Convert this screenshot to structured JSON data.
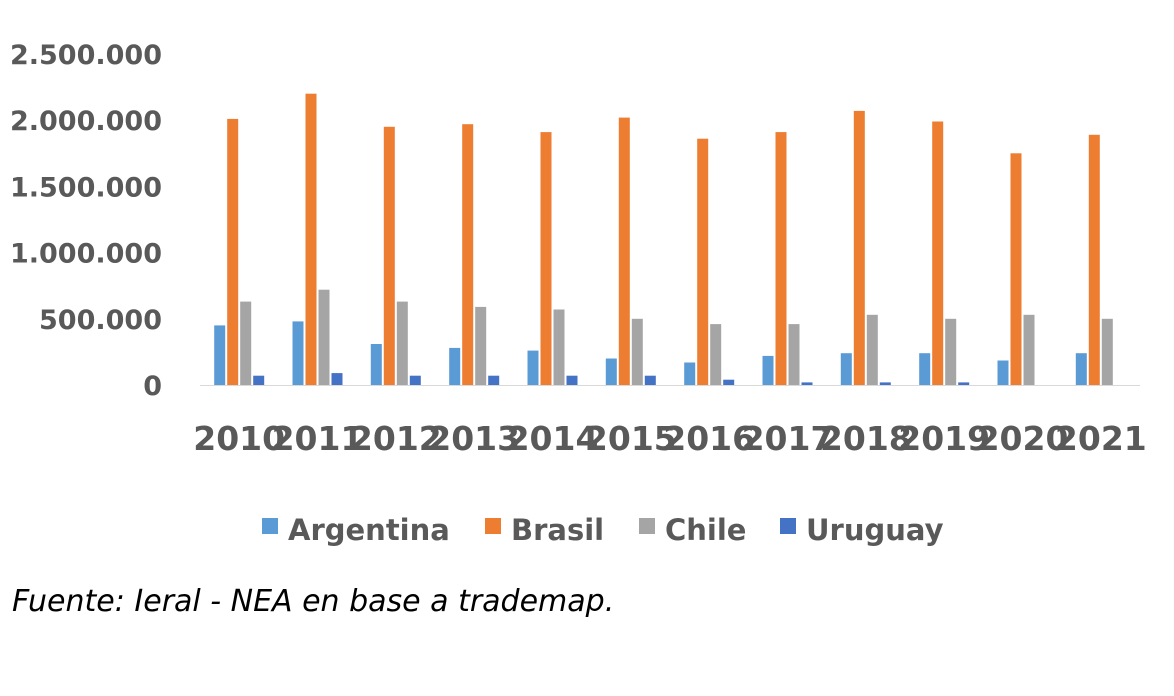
{
  "chart_data": {
    "type": "bar",
    "categories": [
      "2010",
      "2011",
      "2012",
      "2013",
      "2014",
      "2015",
      "2016",
      "2017",
      "2018",
      "2019",
      "2020",
      "2021"
    ],
    "series": [
      {
        "name": "Argentina",
        "color": "#5B9BD5",
        "values": [
          450000,
          480000,
          310000,
          280000,
          260000,
          200000,
          170000,
          220000,
          240000,
          240000,
          185000,
          240000
        ]
      },
      {
        "name": "Brasil",
        "color": "#ED7D31",
        "values": [
          2010000,
          2200000,
          1950000,
          1970000,
          1910000,
          2020000,
          1860000,
          1910000,
          2070000,
          1990000,
          1750000,
          1890000
        ]
      },
      {
        "name": "Chile",
        "color": "#A5A5A5",
        "values": [
          630000,
          720000,
          630000,
          590000,
          570000,
          500000,
          460000,
          460000,
          530000,
          500000,
          530000,
          500000
        ]
      },
      {
        "name": "Uruguay",
        "color": "#4472C4",
        "values": [
          70000,
          90000,
          70000,
          70000,
          70000,
          70000,
          40000,
          20000,
          20000,
          20000,
          0,
          0
        ]
      }
    ],
    "yticks": [
      "0",
      "500.000",
      "1.000.000",
      "1.500.000",
      "2.000.000",
      "2.500.000"
    ],
    "ylim": [
      0,
      2500000
    ],
    "legend_position": "bottom",
    "grid": false
  },
  "source_note": "Fuente: Ieral - NEA en base a trademap."
}
